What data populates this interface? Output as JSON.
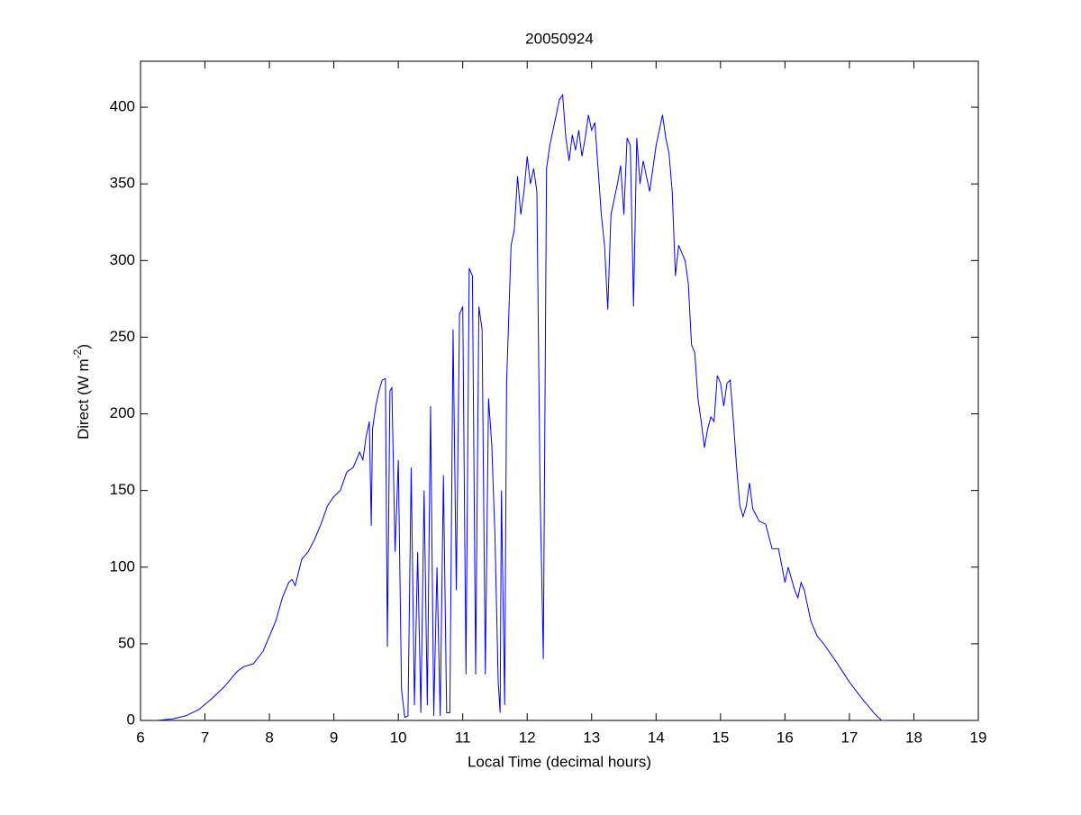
{
  "chart_data": {
    "type": "line",
    "title": "20050924",
    "xlabel": "Local Time (decimal hours)",
    "ylabel": [
      "Direct (W m",
      "-2",
      ")"
    ],
    "x": [
      6.25,
      6.5,
      6.7,
      6.9,
      7.1,
      7.3,
      7.5,
      7.6,
      7.75,
      7.9,
      8.0,
      8.1,
      8.2,
      8.3,
      8.35,
      8.4,
      8.5,
      8.6,
      8.7,
      8.8,
      8.9,
      9.0,
      9.1,
      9.2,
      9.3,
      9.4,
      9.45,
      9.5,
      9.55,
      9.58,
      9.6,
      9.65,
      9.7,
      9.75,
      9.8,
      9.83,
      9.87,
      9.9,
      9.95,
      10.0,
      10.05,
      10.1,
      10.15,
      10.2,
      10.25,
      10.3,
      10.35,
      10.4,
      10.45,
      10.5,
      10.55,
      10.6,
      10.65,
      10.7,
      10.75,
      10.8,
      10.85,
      10.9,
      10.95,
      11.0,
      11.05,
      11.1,
      11.15,
      11.2,
      11.25,
      11.3,
      11.35,
      11.4,
      11.45,
      11.5,
      11.55,
      11.58,
      11.6,
      11.65,
      11.68,
      11.75,
      11.8,
      11.85,
      11.9,
      11.95,
      12.0,
      12.05,
      12.1,
      12.15,
      12.2,
      12.25,
      12.3,
      12.35,
      12.4,
      12.5,
      12.55,
      12.6,
      12.65,
      12.7,
      12.75,
      12.8,
      12.85,
      12.9,
      12.95,
      13.0,
      13.05,
      13.1,
      13.15,
      13.2,
      13.25,
      13.3,
      13.4,
      13.45,
      13.5,
      13.55,
      13.6,
      13.65,
      13.7,
      13.75,
      13.8,
      13.85,
      13.9,
      13.95,
      14.0,
      14.05,
      14.1,
      14.15,
      14.2,
      14.25,
      14.3,
      14.35,
      14.4,
      14.45,
      14.5,
      14.55,
      14.6,
      14.65,
      14.7,
      14.75,
      14.8,
      14.85,
      14.9,
      14.95,
      15.0,
      15.05,
      15.1,
      15.15,
      15.2,
      15.25,
      15.3,
      15.35,
      15.4,
      15.45,
      15.5,
      15.6,
      15.7,
      15.8,
      15.9,
      16.0,
      16.05,
      16.15,
      16.2,
      16.25,
      16.3,
      16.4,
      16.5,
      16.6,
      16.8,
      17.0,
      17.2,
      17.4,
      17.5,
      17.55
    ],
    "series": [
      {
        "color": "#0000ff",
        "values": [
          0,
          1,
          3,
          7,
          14,
          22,
          32,
          35,
          37,
          45,
          55,
          65,
          80,
          90,
          92,
          88,
          105,
          110,
          118,
          128,
          140,
          146,
          150,
          162,
          165,
          175,
          170,
          185,
          195,
          127,
          190,
          205,
          215,
          222,
          223,
          48,
          215,
          217,
          110,
          170,
          20,
          2,
          3,
          165,
          10,
          110,
          5,
          150,
          10,
          205,
          3,
          100,
          3,
          160,
          5,
          5,
          255,
          85,
          265,
          270,
          30,
          295,
          290,
          30,
          270,
          255,
          30,
          210,
          180,
          120,
          25,
          5,
          150,
          10,
          220,
          310,
          320,
          355,
          330,
          345,
          368,
          350,
          360,
          345,
          150,
          40,
          360,
          375,
          385,
          405,
          408,
          380,
          365,
          382,
          372,
          385,
          368,
          380,
          395,
          385,
          390,
          360,
          330,
          310,
          268,
          330,
          350,
          362,
          330,
          380,
          375,
          270,
          380,
          350,
          365,
          355,
          345,
          360,
          375,
          385,
          395,
          380,
          370,
          345,
          290,
          310,
          305,
          300,
          285,
          245,
          240,
          210,
          195,
          178,
          190,
          198,
          195,
          225,
          220,
          205,
          220,
          222,
          195,
          165,
          140,
          133,
          140,
          155,
          138,
          130,
          128,
          112,
          112,
          90,
          100,
          85,
          80,
          90,
          85,
          65,
          55,
          50,
          38,
          25,
          14,
          4,
          0,
          0
        ]
      }
    ],
    "xlim": [
      6,
      19
    ],
    "xticks": [
      6,
      7,
      8,
      9,
      10,
      11,
      12,
      13,
      14,
      15,
      16,
      17,
      18,
      19
    ],
    "ylim": [
      0,
      430
    ],
    "yticks": [
      0,
      50,
      100,
      150,
      200,
      250,
      300,
      350,
      400
    ]
  }
}
